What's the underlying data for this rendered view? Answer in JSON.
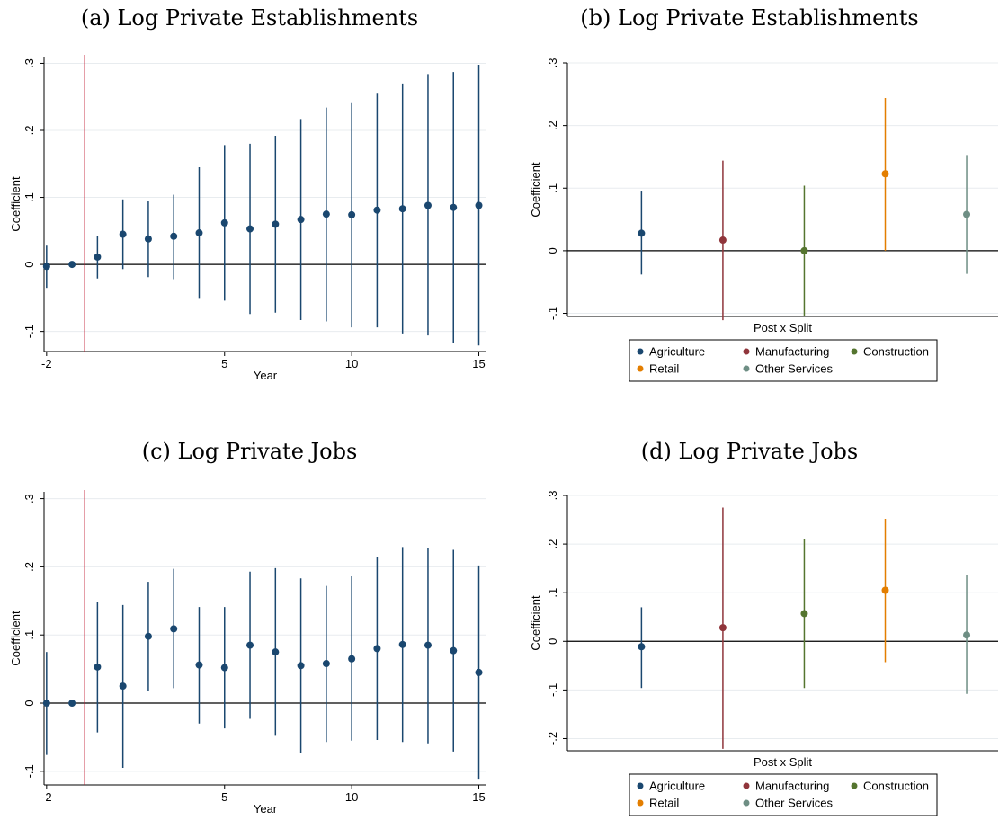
{
  "colors": {
    "series": "#1a476f",
    "event_line": "#c0142a",
    "grid": "#e8ecef",
    "Agriculture": "#1a476f",
    "Manufacturing": "#90353b",
    "Construction": "#55752f",
    "Retail": "#e37e00",
    "Other Services": "#6e8e84"
  },
  "panels": {
    "a": {
      "title": "(a) Log Private Establishments"
    },
    "b": {
      "title": "(b) Log Private Establishments"
    },
    "c": {
      "title": "(c) Log Private Jobs"
    },
    "d": {
      "title": "(d) Log Private Jobs"
    }
  },
  "chart_data": [
    {
      "id": "a",
      "type": "scatter",
      "title": "(a) Log Private Establishments",
      "xlabel": "Year",
      "ylabel": "Coefficient",
      "xlim": [
        -2.1,
        15.3
      ],
      "ylim": [
        -0.13,
        0.31
      ],
      "xticks": [
        -2,
        5,
        10,
        15
      ],
      "xtick_labels": [
        "-2",
        "5",
        "10",
        "15"
      ],
      "yticks": [
        -0.1,
        0,
        0.1,
        0.2,
        0.3
      ],
      "ytick_labels": [
        "-.1",
        "0",
        ".1",
        ".2",
        ".3"
      ],
      "event_line_x": -0.5,
      "x": [
        -2,
        -1,
        0,
        1,
        2,
        3,
        4,
        5,
        6,
        7,
        8,
        9,
        10,
        11,
        12,
        13,
        14,
        15
      ],
      "y": [
        -0.003,
        0.0,
        0.011,
        0.045,
        0.038,
        0.042,
        0.047,
        0.062,
        0.053,
        0.06,
        0.067,
        0.075,
        0.074,
        0.081,
        0.083,
        0.088,
        0.085,
        0.088
      ],
      "ci_low": [
        -0.035,
        0.0,
        -0.021,
        -0.007,
        -0.019,
        -0.022,
        -0.05,
        -0.054,
        -0.074,
        -0.072,
        -0.083,
        -0.085,
        -0.094,
        -0.094,
        -0.103,
        -0.106,
        -0.118,
        -0.121
      ],
      "ci_high": [
        0.028,
        0.0,
        0.043,
        0.097,
        0.094,
        0.104,
        0.145,
        0.178,
        0.18,
        0.192,
        0.217,
        0.234,
        0.242,
        0.256,
        0.27,
        0.284,
        0.287,
        0.298
      ]
    },
    {
      "id": "b",
      "type": "scatter",
      "title": "(b) Log Private Establishments",
      "xlabel": "Post x Split",
      "ylabel": "Coefficient",
      "ylim": [
        -0.105,
        0.3
      ],
      "yticks": [
        -0.1,
        0,
        0.1,
        0.2,
        0.3
      ],
      "ytick_labels": [
        "-.1",
        "0",
        ".1",
        ".2",
        ".3"
      ],
      "legend_position": "bottom",
      "series": [
        {
          "name": "Agriculture",
          "value": 0.028,
          "ci_low": -0.038,
          "ci_high": 0.096
        },
        {
          "name": "Manufacturing",
          "value": 0.017,
          "ci_low": -0.111,
          "ci_high": 0.144
        },
        {
          "name": "Construction",
          "value": 0.0,
          "ci_low": -0.104,
          "ci_high": 0.104
        },
        {
          "name": "Retail",
          "value": 0.123,
          "ci_low": 0.0,
          "ci_high": 0.244
        },
        {
          "name": "Other Services",
          "value": 0.058,
          "ci_low": -0.037,
          "ci_high": 0.153
        }
      ]
    },
    {
      "id": "c",
      "type": "scatter",
      "title": "(c) Log Private Jobs",
      "xlabel": "Year",
      "ylabel": "Coefficient",
      "xlim": [
        -2.1,
        15.3
      ],
      "ylim": [
        -0.12,
        0.31
      ],
      "xticks": [
        -2,
        5,
        10,
        15
      ],
      "xtick_labels": [
        "-2",
        "5",
        "10",
        "15"
      ],
      "yticks": [
        -0.1,
        0,
        0.1,
        0.2,
        0.3
      ],
      "ytick_labels": [
        "-.1",
        "0",
        ".1",
        ".2",
        ".3"
      ],
      "event_line_x": -0.5,
      "x": [
        -2,
        -1,
        0,
        1,
        2,
        3,
        4,
        5,
        6,
        7,
        8,
        9,
        10,
        11,
        12,
        13,
        14,
        15
      ],
      "y": [
        0.0,
        0.0,
        0.053,
        0.025,
        0.098,
        0.109,
        0.056,
        0.052,
        0.085,
        0.075,
        0.055,
        0.058,
        0.065,
        0.08,
        0.086,
        0.085,
        0.077,
        0.045
      ],
      "ci_low": [
        -0.076,
        0.0,
        -0.043,
        -0.095,
        0.018,
        0.022,
        -0.03,
        -0.037,
        -0.023,
        -0.048,
        -0.073,
        -0.057,
        -0.055,
        -0.054,
        -0.057,
        -0.059,
        -0.071,
        -0.111
      ],
      "ci_high": [
        0.075,
        0.0,
        0.149,
        0.144,
        0.178,
        0.197,
        0.141,
        0.141,
        0.193,
        0.198,
        0.183,
        0.172,
        0.186,
        0.215,
        0.229,
        0.228,
        0.225,
        0.202
      ]
    },
    {
      "id": "d",
      "type": "scatter",
      "title": "(d) Log Private Jobs",
      "xlabel": "Post x Split",
      "ylabel": "Coefficient",
      "ylim": [
        -0.225,
        0.3
      ],
      "yticks": [
        -0.2,
        -0.1,
        0,
        0.1,
        0.2,
        0.3
      ],
      "ytick_labels": [
        "-.2",
        "-.1",
        "0",
        ".1",
        ".2",
        ".3"
      ],
      "legend_position": "bottom",
      "series": [
        {
          "name": "Agriculture",
          "value": -0.011,
          "ci_low": -0.096,
          "ci_high": 0.07
        },
        {
          "name": "Manufacturing",
          "value": 0.028,
          "ci_low": -0.221,
          "ci_high": 0.275
        },
        {
          "name": "Construction",
          "value": 0.057,
          "ci_low": -0.096,
          "ci_high": 0.21
        },
        {
          "name": "Retail",
          "value": 0.105,
          "ci_low": -0.043,
          "ci_high": 0.252
        },
        {
          "name": "Other Services",
          "value": 0.013,
          "ci_low": -0.108,
          "ci_high": 0.136
        }
      ]
    }
  ]
}
